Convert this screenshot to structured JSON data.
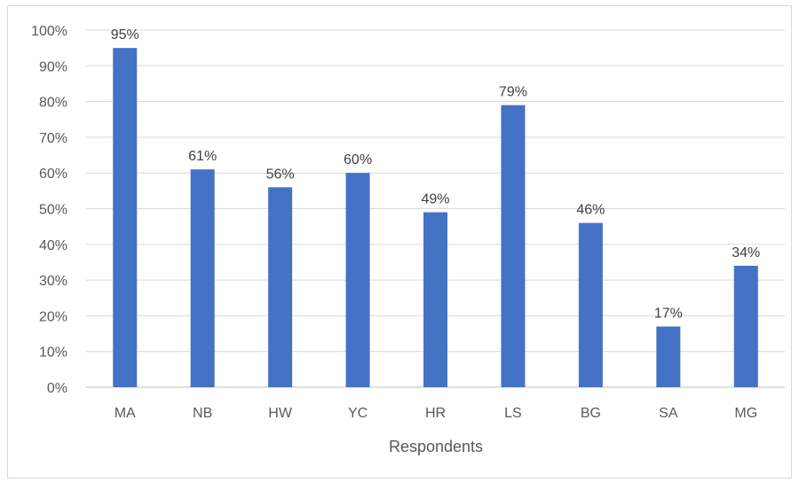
{
  "chart_data": {
    "type": "bar",
    "categories": [
      "MA",
      "NB",
      "HW",
      "YC",
      "HR",
      "LS",
      "BG",
      "SA",
      "MG"
    ],
    "values": [
      95,
      61,
      56,
      60,
      49,
      79,
      46,
      17,
      34
    ],
    "data_labels": [
      "95%",
      "61%",
      "56%",
      "60%",
      "49%",
      "79%",
      "46%",
      "17%",
      "34%"
    ],
    "title": "",
    "xlabel": "Respondents",
    "ylabel": "",
    "ylim": [
      0,
      100
    ],
    "y_ticks": [
      0,
      10,
      20,
      30,
      40,
      50,
      60,
      70,
      80,
      90,
      100
    ],
    "y_tick_labels": [
      "0%",
      "10%",
      "20%",
      "30%",
      "40%",
      "50%",
      "60%",
      "70%",
      "80%",
      "90%",
      "100%"
    ],
    "grid": true,
    "legend": "none",
    "bar_color": "#4472c4",
    "grid_color": "#d9d9d9"
  }
}
